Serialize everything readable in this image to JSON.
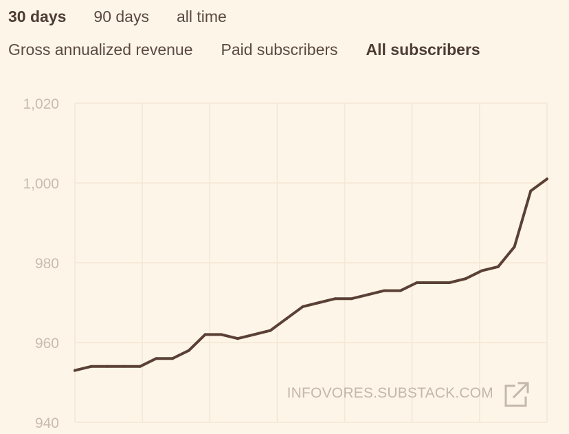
{
  "range_tabs": [
    {
      "label": "30 days",
      "active": true
    },
    {
      "label": "90 days",
      "active": false
    },
    {
      "label": "all time",
      "active": false
    }
  ],
  "metric_tabs": [
    {
      "label": "Gross annualized revenue",
      "active": false
    },
    {
      "label": "Paid subscribers",
      "active": false
    },
    {
      "label": "All subscribers",
      "active": true
    }
  ],
  "watermark": {
    "text": "INFOVORES.SUBSTACK.COM",
    "icon": "external-link-icon"
  },
  "colors": {
    "line": "#5a4035",
    "grid": "#f3e7d6",
    "background": "#fdf5e8",
    "tick_label": "#c9bcae"
  },
  "chart_data": {
    "type": "line",
    "title": "",
    "xlabel": "",
    "ylabel": "",
    "ylim": [
      940,
      1020
    ],
    "yticks": [
      940,
      960,
      980,
      1000,
      1020
    ],
    "ytick_labels": [
      "940",
      "960",
      "980",
      "1,000",
      "1,020"
    ],
    "grid": true,
    "legend": "none",
    "x": [
      1,
      2,
      3,
      4,
      5,
      6,
      7,
      8,
      9,
      10,
      11,
      12,
      13,
      14,
      15,
      16,
      17,
      18,
      19,
      20,
      21,
      22,
      23,
      24,
      25,
      26,
      27,
      28,
      29,
      30
    ],
    "series": [
      {
        "values": [
          953,
          954,
          954,
          954,
          954,
          956,
          956,
          958,
          962,
          962,
          961,
          962,
          963,
          966,
          969,
          970,
          971,
          971,
          972,
          973,
          973,
          975,
          975,
          975,
          976,
          978,
          979,
          984,
          998,
          1001
        ]
      }
    ]
  }
}
